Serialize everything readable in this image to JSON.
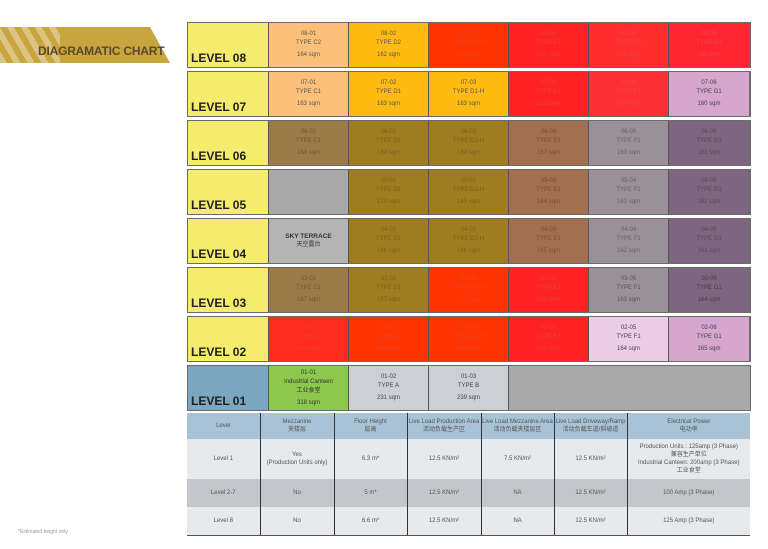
{
  "header": {
    "title": "DIAGRAMATIC CHART"
  },
  "colors": {
    "level_label": "#f5ec6e",
    "level_01_label": "#7ba7c0",
    "type_c2": "#fcc07a",
    "type_c1_top": "#fcc07a",
    "type_d": "#ffbb10",
    "red": "#ff2b1c",
    "red_orange": "#ff3300",
    "brown_c1": "#9a7a46",
    "olive_d1": "#a07c20",
    "rust_e1": "#a2704f",
    "gray_f1": "#9a9097",
    "purple_g1": "#7f6680",
    "light_pink": "#eccde6",
    "pink_g1": "#d6a6cf",
    "canteen_green": "#8cc84b",
    "type_ab": "#ccd0d6",
    "empty_gray": "#a9a9a9",
    "table_header": "#a9c3d6"
  },
  "levels": [
    {
      "label": "LEVEL 08",
      "label_color": "#f5ec6e",
      "units": [
        {
          "id": "08-01",
          "type": "TYPE C2",
          "area": "164 sqm",
          "color": "#fcc07a",
          "text": "#555"
        },
        {
          "id": "08-02",
          "type": "TYPE D2",
          "area": "162 sqm",
          "color": "#ffbb10",
          "text": "#555"
        },
        {
          "id": "08-03",
          "type": "TYPE D1-H",
          "area": "162 sqm",
          "color": "#ff3300",
          "text": "#e4452c"
        },
        {
          "id": "08-04",
          "type": "TYPE E2",
          "area": "162 sqm",
          "color": "#ff2222",
          "text": "#e64040"
        },
        {
          "id": "08-05",
          "type": "TYPE F2",
          "area": "158 sqm",
          "color": "#ff2d2d",
          "text": "#e64848"
        },
        {
          "id": "08-06",
          "type": "TYPE G2",
          "area": "159 sqm",
          "color": "#ff2530",
          "text": "#e64848"
        }
      ]
    },
    {
      "label": "LEVEL 07",
      "label_color": "#f5ec6e",
      "units": [
        {
          "id": "07-01",
          "type": "TYPE C1",
          "area": "163 sqm",
          "color": "#fcc07a",
          "text": "#555"
        },
        {
          "id": "07-02",
          "type": "TYPE D1",
          "area": "163 sqm",
          "color": "#ffbb10",
          "text": "#555"
        },
        {
          "id": "07-03",
          "type": "TYPE D1-H",
          "area": "163 sqm",
          "color": "#ffbb10",
          "text": "#555"
        },
        {
          "id": "07-04",
          "type": "TYPE E1",
          "area": "162 sqm",
          "color": "#ff2222",
          "text": "#e64040"
        },
        {
          "id": "07-05",
          "type": "TYPE F1",
          "area": "159 sqm",
          "color": "#ff3035",
          "text": "#e64848"
        },
        {
          "id": "07-06",
          "type": "TYPE G1",
          "area": "160 sqm",
          "color": "#d6a6cf",
          "text": "#444"
        }
      ]
    },
    {
      "label": "LEVEL 06",
      "label_color": "#f5ec6e",
      "units": [
        {
          "id": "06-01",
          "type": "TYPE C1",
          "area": "164 sqm",
          "color": "#9a7a46",
          "text": "#6e5a3a"
        },
        {
          "id": "06-02",
          "type": "TYPE D1",
          "area": "164 sqm",
          "color": "#a07c20",
          "text": "#7a6020"
        },
        {
          "id": "06-03",
          "type": "TYPE D1-H",
          "area": "164 sqm",
          "color": "#a07c20",
          "text": "#7a6020"
        },
        {
          "id": "06-04",
          "type": "TYPE E1",
          "area": "167 sqm",
          "color": "#a2704f",
          "text": "#785038"
        },
        {
          "id": "06-05",
          "type": "TYPE F1",
          "area": "160 sqm",
          "color": "#9a9097",
          "text": "#6a6068"
        },
        {
          "id": "06-06",
          "type": "TYPE G1",
          "area": "161 sqm",
          "color": "#7f6680",
          "text": "#5a465a"
        }
      ]
    },
    {
      "label": "LEVEL 05",
      "label_color": "#f5ec6e",
      "units": [
        {
          "id": "",
          "type": "",
          "area": "",
          "color": "#a9a9a9",
          "text": "#555"
        },
        {
          "id": "05-01",
          "type": "TYPE D1",
          "area": "170 sqm",
          "color": "#a07c20",
          "text": "#7a6020"
        },
        {
          "id": "05-02",
          "type": "TYPE D1-H",
          "area": "165 sqm",
          "color": "#a07c20",
          "text": "#7a6020"
        },
        {
          "id": "05-03",
          "type": "TYPE E1",
          "area": "164 sqm",
          "color": "#a2704f",
          "text": "#785038"
        },
        {
          "id": "05-04",
          "type": "TYPE F1",
          "area": "161 sqm",
          "color": "#9a9097",
          "text": "#6a6068"
        },
        {
          "id": "05-05",
          "type": "TYPE G1",
          "area": "162 sqm",
          "color": "#7f6680",
          "text": "#5a465a"
        }
      ]
    },
    {
      "label": "LEVEL 04",
      "label_color": "#f5ec6e",
      "units": [
        {
          "id": "SKY TERRACE",
          "type": "天空露台",
          "area": "",
          "color": "#b4b4b4",
          "text": "#333",
          "bold": true
        },
        {
          "id": "04-01",
          "type": "TYPE D1",
          "area": "166 sqm",
          "color": "#a07c20",
          "text": "#7a6020"
        },
        {
          "id": "04-02",
          "type": "TYPE D1-H",
          "area": "166 sqm",
          "color": "#a07c20",
          "text": "#7a6020"
        },
        {
          "id": "04-03",
          "type": "TYPE E1",
          "area": "165 sqm",
          "color": "#a2704f",
          "text": "#785038"
        },
        {
          "id": "04-04",
          "type": "TYPE F1",
          "area": "162 sqm",
          "color": "#9a9097",
          "text": "#6a6068"
        },
        {
          "id": "04-05",
          "type": "TYPE G1",
          "area": "163 sqm",
          "color": "#7f6680",
          "text": "#5a465a"
        }
      ]
    },
    {
      "label": "LEVEL 03",
      "label_color": "#f5ec6e",
      "units": [
        {
          "id": "03-01",
          "type": "TYPE C1",
          "area": "167 sqm",
          "color": "#9a7a46",
          "text": "#6e5a3a"
        },
        {
          "id": "03-02",
          "type": "TYPE D1",
          "area": "167 sqm",
          "color": "#a07c20",
          "text": "#7a6020"
        },
        {
          "id": "03-03",
          "type": "TYPE D1-H",
          "area": "167 sqm",
          "color": "#ff3300",
          "text": "#e4452c"
        },
        {
          "id": "03-04",
          "type": "TYPE E1",
          "area": "166 sqm",
          "color": "#ff2222",
          "text": "#e64040"
        },
        {
          "id": "03-05",
          "type": "TYPE F1",
          "area": "163 sqm",
          "color": "#9a9097",
          "text": "#555"
        },
        {
          "id": "03-06",
          "type": "TYPE G1",
          "area": "164 sqm",
          "color": "#7f6680",
          "text": "#4a3a4a"
        }
      ]
    },
    {
      "label": "LEVEL 02",
      "label_color": "#f5ec6e",
      "units": [
        {
          "id": "02-01",
          "type": "TYPE C1",
          "area": "168 sqm",
          "color": "#ff2b1c",
          "text": "#e4452c"
        },
        {
          "id": "02-02",
          "type": "TYPE D1",
          "area": "166 sqm",
          "color": "#ff3300",
          "text": "#e4452c"
        },
        {
          "id": "02-03",
          "type": "TYPE D1-H",
          "area": "168 sqm",
          "color": "#ff3300",
          "text": "#e4452c"
        },
        {
          "id": "02-04",
          "type": "TYPE E1",
          "area": "167 sqm",
          "color": "#ff2222",
          "text": "#e64040"
        },
        {
          "id": "02-05",
          "type": "TYPE F1",
          "area": "164 sqm",
          "color": "#eccde6",
          "text": "#444"
        },
        {
          "id": "02-06",
          "type": "TYPE G1",
          "area": "165 sqm",
          "color": "#d6a6cf",
          "text": "#444"
        }
      ]
    },
    {
      "label": "LEVEL 01",
      "label_color": "#7ba7c0",
      "units": [
        {
          "id": "01-01",
          "type": "Industrial Canteen",
          "sub": "工业食堂",
          "area": "318 sqm",
          "color": "#8cc84b",
          "text": "#333"
        },
        {
          "id": "01-02",
          "type": "TYPE A",
          "area": "231 sqm",
          "color": "#ccd0d6",
          "text": "#444"
        },
        {
          "id": "01-03",
          "type": "TYPE B",
          "area": "239 sqm",
          "color": "#ccd0d6",
          "text": "#444"
        },
        {
          "id": "",
          "type": "",
          "area": "",
          "color": "#a9a9a9",
          "text": "#555",
          "wide": true
        }
      ]
    }
  ],
  "spec_table": {
    "headers": [
      {
        "en": "Level",
        "zh": ""
      },
      {
        "en": "Mezzanine",
        "zh": "夹楼层"
      },
      {
        "en": "Floor Height",
        "zh": "层高"
      },
      {
        "en": "Live Load Production Area",
        "zh": "活动负载生产区"
      },
      {
        "en": "Live Load Mezzanine Area",
        "zh": "活动负载夹楼层区"
      },
      {
        "en": "Live Load Driveway/Ramp",
        "zh": "活动负载车道/斜坡道"
      },
      {
        "en": "Electrical Power",
        "zh": "电功率"
      }
    ],
    "rows": [
      {
        "level": "Level 1",
        "mezzanine": "Yes",
        "mezzanine_note": "(Production Units only)",
        "floor_height": "6.3 m*",
        "ll_production": "12.5 KN/m²",
        "ll_mezzanine": "7.5 KN/m²",
        "ll_driveway": "12.5 KN/m²",
        "power_1": "Production Units : 125amp (3 Phase)",
        "power_1_zh": "兼容生产单位",
        "power_2": "Industrial Canteen: 200amp (3 Phase)",
        "power_2_zh": "工业食堂"
      },
      {
        "level": "Level 2-7",
        "mezzanine": "No",
        "floor_height": "5 m*",
        "ll_production": "12.5 KN/m²",
        "ll_mezzanine": "NA",
        "ll_driveway": "12.5 KN/m²",
        "power": "100 Amp (3 Phase)"
      },
      {
        "level": "Level 8",
        "mezzanine": "No",
        "floor_height": "6.6 m*",
        "ll_production": "12.5 KN/m²",
        "ll_mezzanine": "NA",
        "ll_driveway": "12.5 KN/m²",
        "power": "125 Amp (3 Phase)"
      }
    ]
  },
  "footnote": "*Estimated height only"
}
